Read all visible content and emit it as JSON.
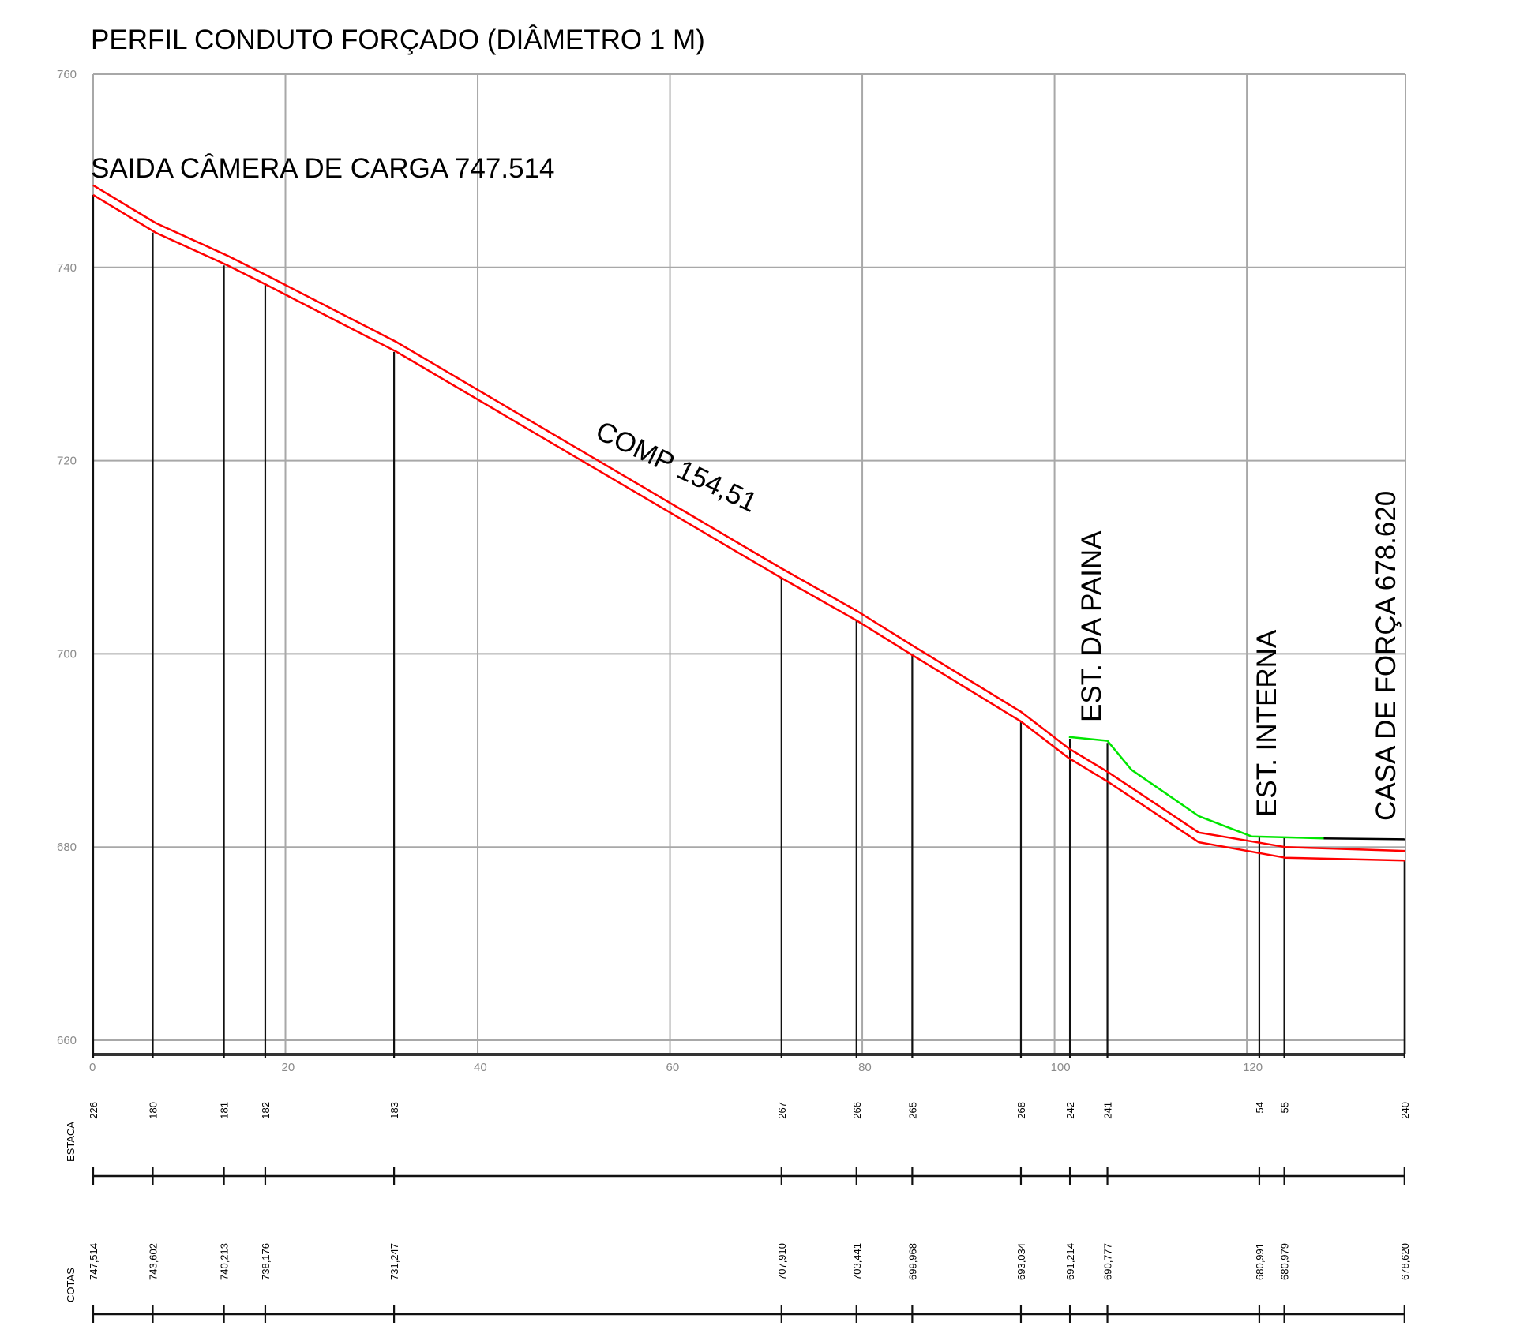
{
  "chart_data": {
    "type": "line",
    "title": "PERFIL CONDUTO FORÇADO (DIÂMETRO 1 M)",
    "xlim": [
      0,
      136.5
    ],
    "ylim": [
      660,
      760
    ],
    "xticks": [
      0,
      20,
      40,
      60,
      80,
      100,
      120
    ],
    "yticks": [
      660,
      680,
      700,
      720,
      740,
      760
    ],
    "xtick_labels": [
      "0",
      "20",
      "40",
      "60",
      "80",
      "100",
      "120"
    ],
    "ytick_labels": [
      "660",
      "680",
      "700",
      "720",
      "740",
      "760"
    ],
    "grid": true,
    "series": [
      {
        "color": "#ff0000",
        "points": [
          [
            0,
            748.5
          ],
          [
            6.5,
            744.6
          ],
          [
            14,
            741.2
          ],
          [
            18,
            739.2
          ],
          [
            31.5,
            732.3
          ],
          [
            71.5,
            708.9
          ],
          [
            79.5,
            704.4
          ],
          [
            85,
            701.0
          ],
          [
            96.5,
            694.0
          ],
          [
            101.5,
            690.2
          ],
          [
            105.5,
            687.8
          ],
          [
            115,
            681.5
          ],
          [
            124,
            680.0
          ],
          [
            136.5,
            679.6
          ]
        ]
      },
      {
        "color": "#ff0000",
        "points": [
          [
            0,
            747.5
          ],
          [
            6.5,
            743.6
          ],
          [
            14,
            740.2
          ],
          [
            18,
            738.2
          ],
          [
            31.5,
            731.3
          ],
          [
            71.5,
            707.9
          ],
          [
            79.5,
            703.4
          ],
          [
            85,
            700.0
          ],
          [
            96.5,
            693.0
          ],
          [
            101.5,
            689.2
          ],
          [
            105.5,
            686.8
          ],
          [
            115,
            680.5
          ],
          [
            124,
            678.9
          ],
          [
            136.5,
            678.6
          ]
        ]
      },
      {
        "color": "#00e600",
        "points": [
          [
            101.5,
            691.4
          ],
          [
            105.5,
            691.0
          ],
          [
            108,
            688.0
          ],
          [
            115,
            683.2
          ],
          [
            120.5,
            681.1
          ],
          [
            128,
            680.9
          ]
        ]
      },
      {
        "color": "#000000",
        "points": [
          [
            128,
            680.9
          ],
          [
            136.5,
            680.8
          ]
        ]
      }
    ],
    "stations": [
      {
        "x": 0,
        "estaca": "226",
        "cota": "747,514",
        "y": 747.514
      },
      {
        "x": 6.2,
        "estaca": "180",
        "cota": "743,602",
        "y": 743.602
      },
      {
        "x": 13.6,
        "estaca": "181",
        "cota": "740,213",
        "y": 740.213
      },
      {
        "x": 17.9,
        "estaca": "182",
        "cota": "738,176",
        "y": 738.176
      },
      {
        "x": 31.3,
        "estaca": "183",
        "cota": "731,247",
        "y": 731.247
      },
      {
        "x": 71.6,
        "estaca": "267",
        "cota": "707,910",
        "y": 707.91
      },
      {
        "x": 79.4,
        "estaca": "266",
        "cota": "703,441",
        "y": 703.441
      },
      {
        "x": 85.2,
        "estaca": "265",
        "cota": "699,968",
        "y": 699.968
      },
      {
        "x": 96.5,
        "estaca": "268",
        "cota": "693,034",
        "y": 693.034
      },
      {
        "x": 101.6,
        "estaca": "242",
        "cota": "691,214",
        "y": 691.214
      },
      {
        "x": 105.5,
        "estaca": "241",
        "cota": "690,777",
        "y": 690.777
      },
      {
        "x": 121.3,
        "estaca": "54",
        "cota": "680,991",
        "y": 680.991
      },
      {
        "x": 123.9,
        "estaca": "55",
        "cota": "680,979",
        "y": 680.979
      },
      {
        "x": 136.4,
        "estaca": "240",
        "cota": "678,620",
        "y": 678.62
      }
    ],
    "annotations": {
      "saida": "SAIDA CÂMERA DE CARGA 747.514",
      "comp": "COMP 154,51",
      "est_paina": "EST. DA PAINA",
      "est_interna": "EST. INTERNA",
      "casa": "CASA DE FORÇA 678.620"
    },
    "row_labels": {
      "estaca": "ESTACA",
      "cotas": "COTAS"
    }
  }
}
